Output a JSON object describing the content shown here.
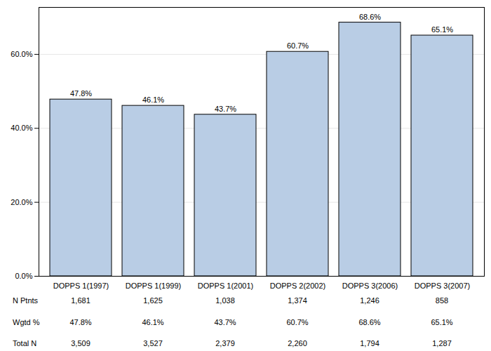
{
  "chart_data": {
    "type": "bar",
    "categories": [
      "DOPPS 1(1997)",
      "DOPPS 1(1999)",
      "DOPPS 1(2001)",
      "DOPPS 2(2002)",
      "DOPPS 3(2006)",
      "DOPPS 3(2007)"
    ],
    "values": [
      47.8,
      46.1,
      43.7,
      60.7,
      68.6,
      65.1
    ],
    "value_labels": [
      "47.8%",
      "46.1%",
      "43.7%",
      "60.7%",
      "68.6%",
      "65.1%"
    ],
    "data_labels": true,
    "color": "#b9cde5",
    "ylim": [
      0,
      72.7
    ],
    "yticks": [
      {
        "value": 0,
        "label": "0.0%"
      },
      {
        "value": 20,
        "label": "20.0%"
      },
      {
        "value": 40,
        "label": "40.0%"
      },
      {
        "value": 60,
        "label": "60.0%"
      }
    ],
    "grid": true
  },
  "table": {
    "rows": [
      {
        "label": "N Ptnts",
        "values": [
          "1,681",
          "1,625",
          "1,038",
          "1,374",
          "1,246",
          "858"
        ]
      },
      {
        "label": "Wgtd %",
        "values": [
          "47.8%",
          "46.1%",
          "43.7%",
          "60.7%",
          "68.6%",
          "65.1%"
        ]
      },
      {
        "label": "Total N",
        "values": [
          "3,509",
          "3,527",
          "2,379",
          "2,260",
          "1,794",
          "1,287"
        ]
      }
    ]
  }
}
